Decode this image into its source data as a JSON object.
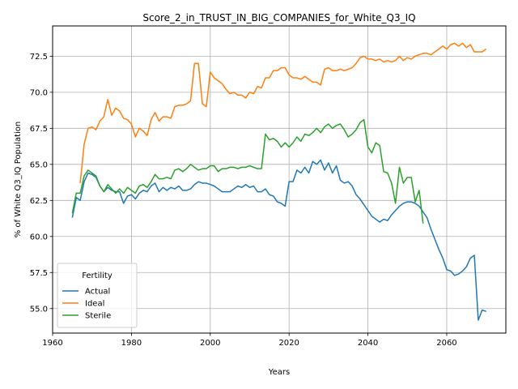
{
  "chart_data": {
    "type": "line",
    "title": "Score_2_in_TRUST_IN_BIG_COMPANIES_for_White_Q3_IQ",
    "xlabel": "Years",
    "ylabel": "% of White Q3_IQ Population",
    "xlim": [
      1960,
      2075
    ],
    "ylim": [
      53.3,
      74.6
    ],
    "xticks": [
      1960,
      1980,
      2000,
      2020,
      2040,
      2060
    ],
    "yticks": [
      55.0,
      57.5,
      60.0,
      62.5,
      65.0,
      67.5,
      70.0,
      72.5
    ],
    "grid": true,
    "legend": {
      "title": "Fertility",
      "position": "lower-left"
    },
    "series": [
      {
        "name": "Actual",
        "color": "#1f77b4",
        "points": [
          [
            1965,
            61.3
          ],
          [
            1966,
            62.7
          ],
          [
            1967,
            62.5
          ],
          [
            1968,
            63.8
          ],
          [
            1969,
            64.4
          ],
          [
            1970,
            64.3
          ],
          [
            1971,
            64.1
          ],
          [
            1972,
            63.5
          ],
          [
            1973,
            63.1
          ],
          [
            1974,
            63.4
          ],
          [
            1975,
            63.2
          ],
          [
            1976,
            63.1
          ],
          [
            1977,
            63.1
          ],
          [
            1978,
            62.3
          ],
          [
            1979,
            62.8
          ],
          [
            1980,
            62.9
          ],
          [
            1981,
            62.6
          ],
          [
            1982,
            63.0
          ],
          [
            1983,
            63.2
          ],
          [
            1984,
            63.1
          ],
          [
            1985,
            63.5
          ],
          [
            1986,
            63.7
          ],
          [
            1987,
            63.1
          ],
          [
            1988,
            63.4
          ],
          [
            1989,
            63.2
          ],
          [
            1990,
            63.4
          ],
          [
            1991,
            63.3
          ],
          [
            1992,
            63.5
          ],
          [
            1993,
            63.2
          ],
          [
            1994,
            63.2
          ],
          [
            1995,
            63.3
          ],
          [
            1996,
            63.6
          ],
          [
            1997,
            63.8
          ],
          [
            1998,
            63.7
          ],
          [
            1999,
            63.7
          ],
          [
            2000,
            63.6
          ],
          [
            2001,
            63.5
          ],
          [
            2002,
            63.3
          ],
          [
            2003,
            63.1
          ],
          [
            2004,
            63.1
          ],
          [
            2005,
            63.1
          ],
          [
            2006,
            63.3
          ],
          [
            2007,
            63.5
          ],
          [
            2008,
            63.4
          ],
          [
            2009,
            63.6
          ],
          [
            2010,
            63.4
          ],
          [
            2011,
            63.5
          ],
          [
            2012,
            63.1
          ],
          [
            2013,
            63.1
          ],
          [
            2014,
            63.3
          ],
          [
            2015,
            62.9
          ],
          [
            2016,
            62.8
          ],
          [
            2017,
            62.4
          ],
          [
            2018,
            62.3
          ],
          [
            2019,
            62.1
          ],
          [
            2020,
            63.8
          ],
          [
            2021,
            63.8
          ],
          [
            2022,
            64.6
          ],
          [
            2023,
            64.4
          ],
          [
            2024,
            64.8
          ],
          [
            2025,
            64.4
          ],
          [
            2026,
            65.2
          ],
          [
            2027,
            65.0
          ],
          [
            2028,
            65.3
          ],
          [
            2029,
            64.6
          ],
          [
            2030,
            65.1
          ],
          [
            2031,
            64.4
          ],
          [
            2032,
            64.9
          ],
          [
            2033,
            63.9
          ],
          [
            2034,
            63.7
          ],
          [
            2035,
            63.8
          ],
          [
            2036,
            63.5
          ],
          [
            2037,
            62.9
          ],
          [
            2038,
            62.6
          ],
          [
            2039,
            62.2
          ],
          [
            2040,
            61.8
          ],
          [
            2041,
            61.4
          ],
          [
            2042,
            61.2
          ],
          [
            2043,
            61.0
          ],
          [
            2044,
            61.2
          ],
          [
            2045,
            61.1
          ],
          [
            2046,
            61.5
          ],
          [
            2047,
            61.8
          ],
          [
            2048,
            62.1
          ],
          [
            2049,
            62.3
          ],
          [
            2050,
            62.4
          ],
          [
            2051,
            62.4
          ],
          [
            2052,
            62.3
          ],
          [
            2053,
            62.1
          ],
          [
            2054,
            61.7
          ],
          [
            2055,
            61.3
          ],
          [
            2056,
            60.5
          ],
          [
            2057,
            59.8
          ],
          [
            2058,
            59.1
          ],
          [
            2059,
            58.5
          ],
          [
            2060,
            57.7
          ],
          [
            2061,
            57.6
          ],
          [
            2062,
            57.3
          ],
          [
            2063,
            57.4
          ],
          [
            2064,
            57.6
          ],
          [
            2065,
            57.9
          ],
          [
            2066,
            58.5
          ],
          [
            2067,
            58.7
          ],
          [
            2068,
            54.2
          ],
          [
            2069,
            54.9
          ],
          [
            2070,
            54.8
          ]
        ]
      },
      {
        "name": "Ideal",
        "color": "#ff7f0e",
        "points": [
          [
            1967,
            63.7
          ],
          [
            1968,
            66.4
          ],
          [
            1969,
            67.5
          ],
          [
            1970,
            67.6
          ],
          [
            1971,
            67.4
          ],
          [
            1972,
            68.0
          ],
          [
            1973,
            68.3
          ],
          [
            1974,
            69.5
          ],
          [
            1975,
            68.4
          ],
          [
            1976,
            68.9
          ],
          [
            1977,
            68.7
          ],
          [
            1978,
            68.2
          ],
          [
            1979,
            68.1
          ],
          [
            1980,
            67.8
          ],
          [
            1981,
            66.9
          ],
          [
            1982,
            67.5
          ],
          [
            1983,
            67.3
          ],
          [
            1984,
            67.0
          ],
          [
            1985,
            68.1
          ],
          [
            1986,
            68.6
          ],
          [
            1987,
            68.0
          ],
          [
            1988,
            68.3
          ],
          [
            1989,
            68.3
          ],
          [
            1990,
            68.2
          ],
          [
            1991,
            69.0
          ],
          [
            1992,
            69.1
          ],
          [
            1993,
            69.1
          ],
          [
            1994,
            69.2
          ],
          [
            1995,
            69.4
          ],
          [
            1996,
            72.0
          ],
          [
            1997,
            72.0
          ],
          [
            1998,
            69.2
          ],
          [
            1999,
            69.0
          ],
          [
            2000,
            71.4
          ],
          [
            2001,
            71.0
          ],
          [
            2002,
            70.8
          ],
          [
            2003,
            70.6
          ],
          [
            2004,
            70.2
          ],
          [
            2005,
            69.9
          ],
          [
            2006,
            70.0
          ],
          [
            2007,
            69.8
          ],
          [
            2008,
            69.8
          ],
          [
            2009,
            69.6
          ],
          [
            2010,
            70.0
          ],
          [
            2011,
            69.9
          ],
          [
            2012,
            70.4
          ],
          [
            2013,
            70.3
          ],
          [
            2014,
            71.0
          ],
          [
            2015,
            71.0
          ],
          [
            2016,
            71.5
          ],
          [
            2017,
            71.5
          ],
          [
            2018,
            71.7
          ],
          [
            2019,
            71.7
          ],
          [
            2020,
            71.2
          ],
          [
            2021,
            71.0
          ],
          [
            2022,
            71.0
          ],
          [
            2023,
            70.9
          ],
          [
            2024,
            71.1
          ],
          [
            2025,
            70.9
          ],
          [
            2026,
            70.7
          ],
          [
            2027,
            70.7
          ],
          [
            2028,
            70.5
          ],
          [
            2029,
            71.6
          ],
          [
            2030,
            71.7
          ],
          [
            2031,
            71.5
          ],
          [
            2032,
            71.5
          ],
          [
            2033,
            71.6
          ],
          [
            2034,
            71.5
          ],
          [
            2035,
            71.6
          ],
          [
            2036,
            71.7
          ],
          [
            2037,
            72.0
          ],
          [
            2038,
            72.4
          ],
          [
            2039,
            72.5
          ],
          [
            2040,
            72.3
          ],
          [
            2041,
            72.3
          ],
          [
            2042,
            72.2
          ],
          [
            2043,
            72.3
          ],
          [
            2044,
            72.1
          ],
          [
            2045,
            72.2
          ],
          [
            2046,
            72.1
          ],
          [
            2047,
            72.2
          ],
          [
            2048,
            72.5
          ],
          [
            2049,
            72.2
          ],
          [
            2050,
            72.4
          ],
          [
            2051,
            72.3
          ],
          [
            2052,
            72.5
          ],
          [
            2053,
            72.6
          ],
          [
            2054,
            72.7
          ],
          [
            2055,
            72.7
          ],
          [
            2056,
            72.6
          ],
          [
            2057,
            72.8
          ],
          [
            2058,
            73.0
          ],
          [
            2059,
            73.2
          ],
          [
            2060,
            73.0
          ],
          [
            2061,
            73.3
          ],
          [
            2062,
            73.4
          ],
          [
            2063,
            73.2
          ],
          [
            2064,
            73.4
          ],
          [
            2065,
            73.1
          ],
          [
            2066,
            73.3
          ],
          [
            2067,
            72.8
          ],
          [
            2068,
            72.8
          ],
          [
            2069,
            72.8
          ],
          [
            2070,
            73.0
          ]
        ]
      },
      {
        "name": "Sterile",
        "color": "#2ca02c",
        "points": [
          [
            1965,
            61.6
          ],
          [
            1966,
            63.0
          ],
          [
            1967,
            63.0
          ],
          [
            1968,
            64.2
          ],
          [
            1969,
            64.6
          ],
          [
            1970,
            64.4
          ],
          [
            1971,
            64.2
          ],
          [
            1972,
            63.5
          ],
          [
            1973,
            63.1
          ],
          [
            1974,
            63.6
          ],
          [
            1975,
            63.3
          ],
          [
            1976,
            63.0
          ],
          [
            1977,
            63.3
          ],
          [
            1978,
            63.0
          ],
          [
            1979,
            63.4
          ],
          [
            1980,
            63.2
          ],
          [
            1981,
            63.0
          ],
          [
            1982,
            63.5
          ],
          [
            1983,
            63.6
          ],
          [
            1984,
            63.4
          ],
          [
            1985,
            63.8
          ],
          [
            1986,
            64.3
          ],
          [
            1987,
            64.0
          ],
          [
            1988,
            64.0
          ],
          [
            1989,
            64.1
          ],
          [
            1990,
            64.0
          ],
          [
            1991,
            64.6
          ],
          [
            1992,
            64.7
          ],
          [
            1993,
            64.5
          ],
          [
            1994,
            64.7
          ],
          [
            1995,
            65.0
          ],
          [
            1996,
            64.8
          ],
          [
            1997,
            64.6
          ],
          [
            1998,
            64.7
          ],
          [
            1999,
            64.7
          ],
          [
            2000,
            64.9
          ],
          [
            2001,
            64.9
          ],
          [
            2002,
            64.5
          ],
          [
            2003,
            64.7
          ],
          [
            2004,
            64.7
          ],
          [
            2005,
            64.8
          ],
          [
            2006,
            64.8
          ],
          [
            2007,
            64.7
          ],
          [
            2008,
            64.8
          ],
          [
            2009,
            64.8
          ],
          [
            2010,
            64.9
          ],
          [
            2011,
            64.8
          ],
          [
            2012,
            64.7
          ],
          [
            2013,
            64.7
          ],
          [
            2014,
            67.1
          ],
          [
            2015,
            66.7
          ],
          [
            2016,
            66.8
          ],
          [
            2017,
            66.6
          ],
          [
            2018,
            66.2
          ],
          [
            2019,
            66.5
          ],
          [
            2020,
            66.2
          ],
          [
            2021,
            66.5
          ],
          [
            2022,
            66.9
          ],
          [
            2023,
            66.6
          ],
          [
            2024,
            67.1
          ],
          [
            2025,
            67.0
          ],
          [
            2026,
            67.2
          ],
          [
            2027,
            67.5
          ],
          [
            2028,
            67.2
          ],
          [
            2029,
            67.6
          ],
          [
            2030,
            67.8
          ],
          [
            2031,
            67.5
          ],
          [
            2032,
            67.7
          ],
          [
            2033,
            67.8
          ],
          [
            2034,
            67.4
          ],
          [
            2035,
            66.9
          ],
          [
            2036,
            67.1
          ],
          [
            2037,
            67.4
          ],
          [
            2038,
            67.9
          ],
          [
            2039,
            68.1
          ],
          [
            2040,
            66.2
          ],
          [
            2041,
            65.8
          ],
          [
            2042,
            66.5
          ],
          [
            2043,
            66.3
          ],
          [
            2044,
            64.5
          ],
          [
            2045,
            64.4
          ],
          [
            2046,
            63.7
          ],
          [
            2047,
            62.3
          ],
          [
            2048,
            64.8
          ],
          [
            2049,
            63.7
          ],
          [
            2050,
            64.1
          ],
          [
            2051,
            64.1
          ],
          [
            2052,
            62.4
          ],
          [
            2053,
            63.2
          ],
          [
            2054,
            60.9
          ]
        ]
      }
    ]
  }
}
